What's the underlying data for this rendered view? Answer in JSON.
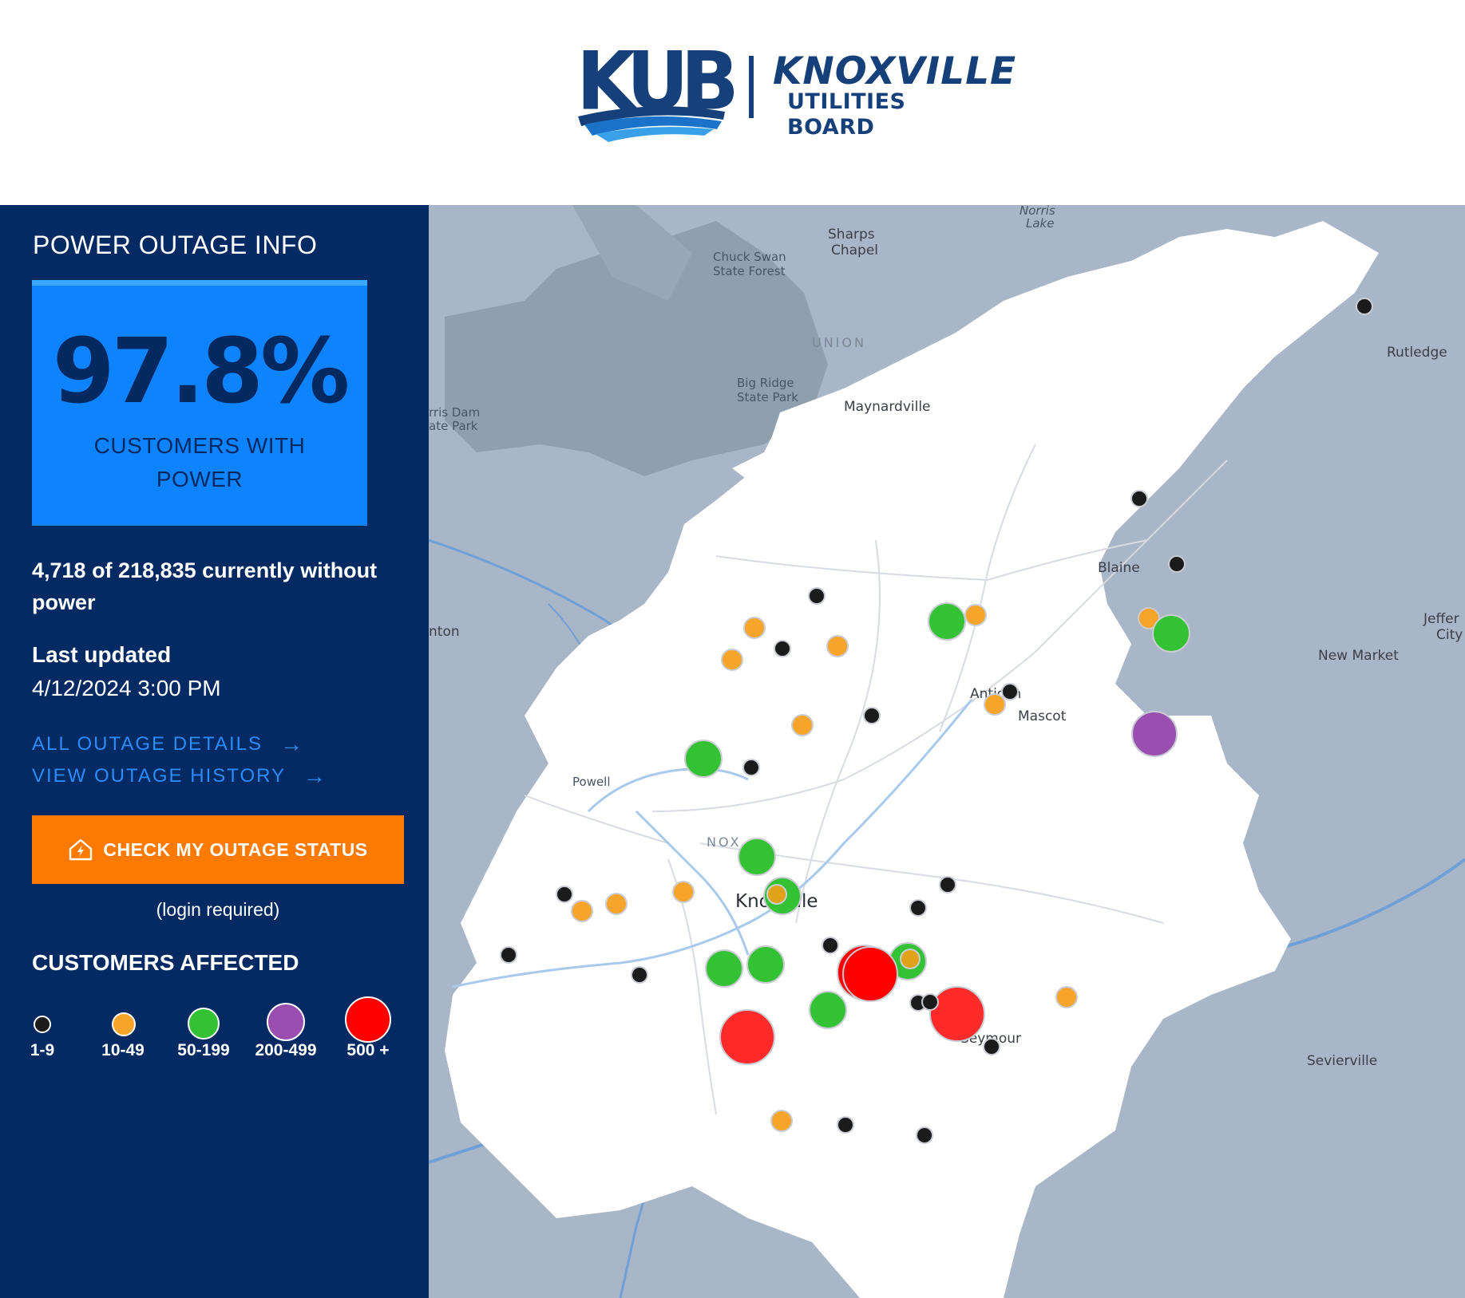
{
  "header": {
    "logo_mark": "KUB",
    "logo_name_line1": "KNOXVILLE",
    "logo_name_line2": "UTILITIES BOARD"
  },
  "sidebar": {
    "title": "POWER OUTAGE INFO",
    "percent_with_power": "97.8%",
    "percent_label": "CUSTOMERS WITH POWER",
    "counts_text": "4,718 of 218,835 currently without power",
    "last_updated_label": "Last updated",
    "last_updated_value": "4/12/2024 3:00 PM",
    "links": [
      {
        "label": "ALL OUTAGE DETAILS",
        "icon": "arrow-right-icon"
      },
      {
        "label": "VIEW OUTAGE HISTORY",
        "icon": "arrow-right-icon"
      }
    ],
    "check_button": {
      "label": "CHECK MY OUTAGE STATUS",
      "icon": "house-lightning-icon"
    },
    "login_note": "(login required)",
    "legend": {
      "title": "CUSTOMERS AFFECTED",
      "items": [
        {
          "label": "1-9",
          "color": "#1b1b1b"
        },
        {
          "label": "10-49",
          "color": "#f7a42b"
        },
        {
          "label": "50-199",
          "color": "#33c233"
        },
        {
          "label": "200-499",
          "color": "#9a4fb0"
        },
        {
          "label": "500 +",
          "color": "#ff0000"
        }
      ]
    }
  },
  "map": {
    "places": [
      "Norris",
      "Lake",
      "Sharps",
      "Chapel",
      "Chuck Swan",
      "State Forest",
      "UNION",
      "Rutledge",
      "Big Ridge",
      "State Park",
      "rris Dam",
      "ate Park",
      "Maynardville",
      "Blaine",
      "nton",
      "Jeffer",
      "City",
      "New Market",
      "Antioch",
      "Mascot",
      "Powell",
      "NOX",
      "Knoxville",
      "Seymour",
      "Sevierville"
    ]
  }
}
